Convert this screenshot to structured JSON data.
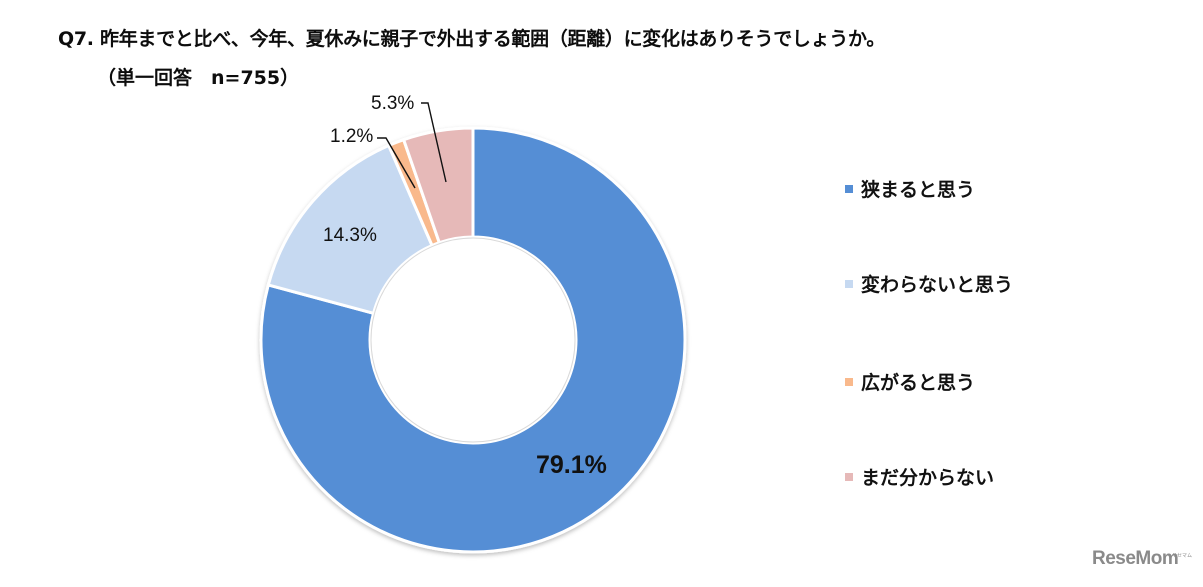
{
  "header": {
    "title": "Q7. 昨年までと比べ、今年、夏休みに親子で外出する範囲（距離）に変化はありそうでしょうか。",
    "subtitle": "（単一回答　n=755）"
  },
  "labels": {
    "narrow": "79.1%",
    "same": "14.3%",
    "wider": "1.2%",
    "unknown": "5.3%"
  },
  "legend": {
    "items": [
      {
        "label": "狭まると思う",
        "color": "#558ED5"
      },
      {
        "label": "変わらないと思う",
        "color": "#C6D9F1"
      },
      {
        "label": "広がると思う",
        "color": "#F9B98C"
      },
      {
        "label": "まだ分からない",
        "color": "#E6B9B8"
      }
    ]
  },
  "watermark": {
    "text": "ReseMom",
    "kana": "リセマム"
  },
  "chart_data": {
    "type": "pie",
    "subtype": "donut",
    "title": "Q7. 昨年までと比べ、今年、夏休みに親子で外出する範囲（距離）に変化はありそうでしょうか。",
    "subtitle": "（単一回答　n=755）",
    "n": 755,
    "categories": [
      "狭まると思う",
      "変わらないと思う",
      "広がると思う",
      "まだ分からない"
    ],
    "values": [
      79.1,
      14.3,
      1.2,
      5.3
    ],
    "unit": "%",
    "colors": [
      "#558ED5",
      "#C6D9F1",
      "#F9B98C",
      "#E6B9B8"
    ],
    "start_angle": "12 o'clock, clockwise",
    "legend_position": "right",
    "data_labels": [
      "79.1%",
      "14.3%",
      "1.2%",
      "5.3%"
    ]
  }
}
